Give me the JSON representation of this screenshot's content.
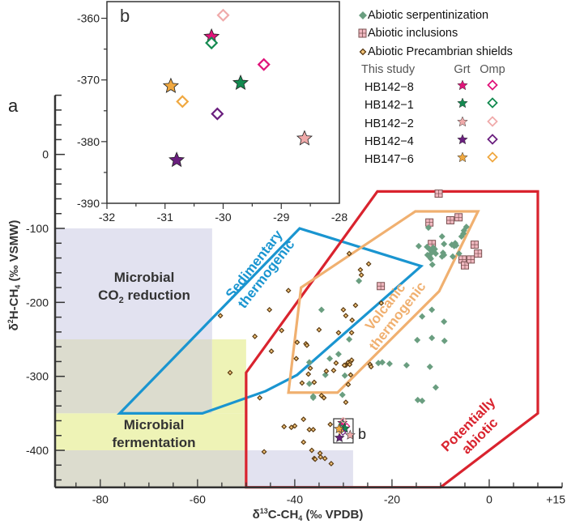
{
  "figure_labels": {
    "panel_a": "a",
    "panel_b": "b",
    "box_b": "b"
  },
  "colors": {
    "red_region": "#d9232e",
    "blue_region": "#1a95d0",
    "orange_region": "#f0b070",
    "lavender": "#e2e2f0",
    "yellow": "#eef3b6",
    "gray": "#dcdcce",
    "serpentinization": "#6a9e80",
    "precambrian_fill": "#f5c67a",
    "precambrian_stroke": "#5a3a12",
    "inclusions_fill": "#f0b8c0",
    "inclusions_stroke": "#7a5050"
  },
  "legend": {
    "serpentinization": "Abiotic serpentinization",
    "inclusions": "Abiotic inclusions",
    "precambrian": "Abiotic Precambrian shields",
    "this_study": "This study",
    "grt": "Grt",
    "omp": "Omp",
    "samples": [
      {
        "name": "HB142−8",
        "color": "#e0147a"
      },
      {
        "name": "HB142−1",
        "color": "#138a50"
      },
      {
        "name": "HB142−2",
        "color": "#f0aaaa"
      },
      {
        "name": "HB142−4",
        "color": "#6a1e7e"
      },
      {
        "name": "HB147−6",
        "color": "#f0a840"
      }
    ]
  },
  "chart_data": [
    {
      "type": "scatter",
      "xlabel": {
        "a": "δ",
        "b": "13",
        "c": "C-CH",
        "d": "4",
        "e": " (‰ VPDB)"
      },
      "ylabel": {
        "a": "δ",
        "b": "2",
        "c": "H-CH",
        "d": "4",
        "e": " (‰ VSMW)"
      },
      "xlim": [
        -89.3,
        15
      ],
      "ylim": [
        -450,
        80
      ],
      "xticks": [
        {
          "v": -80,
          "label": "-80"
        },
        {
          "v": -60,
          "label": "-60"
        },
        {
          "v": -40,
          "label": "-40"
        },
        {
          "v": -20,
          "label": "-20"
        },
        {
          "v": 0,
          "label": "0"
        },
        {
          "v": 15,
          "label": "+15"
        }
      ],
      "yticks": [
        {
          "v": 0,
          "label": "0"
        },
        {
          "v": -100,
          "label": "-100"
        },
        {
          "v": -200,
          "label": "-200"
        },
        {
          "v": -300,
          "label": "-300"
        },
        {
          "v": -400,
          "label": "-400"
        }
      ],
      "regions": {
        "co2_reduction": {
          "label1": "Microbial",
          "label2a": "CO",
          "label2b": "2",
          "label2c": " reduction"
        },
        "fermentation": {
          "label1": "Microbial",
          "label2": "fermentation"
        },
        "sedimentary": {
          "label1": "Sedimentary",
          "label2": "thermogenic",
          "polygon": [
            [
              -39,
              -100
            ],
            [
              -14,
              -151
            ],
            [
              -39.5,
              -298
            ],
            [
              -46,
              -320
            ],
            [
              -59,
              -350
            ],
            [
              -76,
              -350
            ]
          ]
        },
        "volcanic": {
          "label1": "Volcanic",
          "label2": "thermogenic",
          "polygon": [
            [
              -15.2,
              -77
            ],
            [
              -2.3,
              -77
            ],
            [
              -10.3,
              -185
            ],
            [
              -31.2,
              -322
            ],
            [
              -41.3,
              -322
            ],
            [
              -38.7,
              -180
            ]
          ]
        },
        "abiotic": {
          "label1": "Potentially",
          "label2": "abiotic",
          "polygon": [
            [
              -50,
              -450
            ],
            [
              -50,
              -295
            ],
            [
              -23,
              -50
            ],
            [
              10,
              -50
            ],
            [
              10,
              -350
            ],
            [
              -10,
              -450
            ]
          ]
        },
        "rects": [
          {
            "x": [
              -89.3,
              -57
            ],
            "y": [
              -100,
              -250
            ],
            "fill": "#e2e2f0"
          },
          {
            "x": [
              -89.3,
              -57
            ],
            "y": [
              -250,
              -350
            ],
            "fill": "#dcdcce"
          },
          {
            "x": [
              -57,
              -50
            ],
            "y": [
              -250,
              -350
            ],
            "fill": "#eef3b6"
          },
          {
            "x": [
              -89.3,
              -50
            ],
            "y": [
              -350,
              -400
            ],
            "fill": "#eef3b6"
          },
          {
            "x": [
              -89.3,
              -50
            ],
            "y": [
              -400,
              -450
            ],
            "fill": "#dcdcce"
          },
          {
            "x": [
              -50,
              -28
            ],
            "y": [
              -400,
              -450
            ],
            "fill": "#e2e2f0"
          }
        ]
      },
      "series": [
        {
          "name": "Abiotic serpentinization",
          "marker": "diamond",
          "points": [
            [
              -12.5,
              -99
            ],
            [
              -9.7,
              -111
            ],
            [
              -9.3,
              -121
            ],
            [
              -14.5,
              -124
            ],
            [
              -12.8,
              -125
            ],
            [
              -12.3,
              -128
            ],
            [
              -11.8,
              -131
            ],
            [
              -11.2,
              -128
            ],
            [
              -12,
              -134
            ],
            [
              -12.7,
              -136
            ],
            [
              -11.5,
              -126
            ],
            [
              -11,
              -134
            ],
            [
              -12,
              -141
            ],
            [
              -12.2,
              -139
            ],
            [
              -11.7,
              -149
            ],
            [
              -9.5,
              -133
            ],
            [
              -9.3,
              -136
            ],
            [
              -9.7,
              -138
            ],
            [
              -7.7,
              -122
            ],
            [
              -7,
              -120
            ],
            [
              -6.8,
              -123
            ],
            [
              -7.2,
              -124
            ],
            [
              -7.5,
              -138
            ],
            [
              -5.3,
              -107
            ],
            [
              -5.2,
              -103
            ],
            [
              -4.7,
              -98
            ],
            [
              -5.7,
              -111
            ],
            [
              -6.2,
              -134
            ],
            [
              -26.8,
              -171
            ],
            [
              -34.5,
              -210
            ],
            [
              -13.8,
              -219
            ],
            [
              -11.8,
              -210
            ],
            [
              -9.3,
              -226
            ],
            [
              -14.8,
              -251
            ],
            [
              -11.8,
              -248
            ],
            [
              -9.2,
              -252
            ],
            [
              -31,
              -270
            ],
            [
              -32.8,
              -276
            ],
            [
              -37,
              -281
            ],
            [
              -22.8,
              -282
            ],
            [
              -22,
              -281
            ],
            [
              -20.5,
              -283
            ],
            [
              -17,
              -285
            ],
            [
              -12.2,
              -287
            ],
            [
              -33.7,
              -298
            ],
            [
              -29.7,
              -299
            ],
            [
              -37,
              -310
            ],
            [
              -30.2,
              -325
            ],
            [
              -36.2,
              -327
            ],
            [
              -36.2,
              -329
            ],
            [
              -11,
              -315
            ],
            [
              -14.7,
              -332
            ],
            [
              -13.8,
              -333
            ],
            [
              -28.8,
              -250
            ]
          ]
        },
        {
          "name": "Abiotic inclusions",
          "marker": "square",
          "points": [
            [
              -10.4,
              -53
            ],
            [
              -12.3,
              -92
            ],
            [
              -8,
              -89
            ],
            [
              -6.3,
              -85
            ],
            [
              -11.8,
              -121
            ],
            [
              -3,
              -122
            ],
            [
              -2.3,
              -134
            ],
            [
              -5.5,
              -142
            ],
            [
              -5,
              -150
            ],
            [
              -3.8,
              -142
            ],
            [
              -22.3,
              -178
            ]
          ]
        },
        {
          "name": "Abiotic Precambrian shields",
          "marker": "small-diamond",
          "points": [
            [
              -55.3,
              -218
            ],
            [
              -41.3,
              -184
            ],
            [
              -45.2,
              -210
            ],
            [
              -42.7,
              -238
            ],
            [
              -48.2,
              -246
            ],
            [
              -44.8,
              -266
            ],
            [
              -39.5,
              -254
            ],
            [
              -37.7,
              -256
            ],
            [
              -39.7,
              -276
            ],
            [
              -37.2,
              -297
            ],
            [
              -38.5,
              -309
            ],
            [
              -36.8,
              -289
            ],
            [
              -47.2,
              -329
            ],
            [
              -42.2,
              -368
            ],
            [
              -40.7,
              -369
            ],
            [
              -40,
              -367
            ],
            [
              -38.2,
              -358
            ],
            [
              -37,
              -372
            ],
            [
              -36.2,
              -372
            ],
            [
              -38.2,
              -389
            ],
            [
              -36.5,
              -400
            ],
            [
              -46.3,
              -402
            ],
            [
              -36,
              -411
            ],
            [
              -53.3,
              -295
            ],
            [
              -28.8,
              -134
            ],
            [
              -24.8,
              -148
            ],
            [
              -26.5,
              -156
            ],
            [
              -26.3,
              -163
            ],
            [
              -30,
              -210
            ],
            [
              -27.5,
              -204
            ],
            [
              -29.5,
              -218
            ],
            [
              -28.2,
              -224
            ],
            [
              -35,
              -237
            ],
            [
              -31,
              -241
            ],
            [
              -28.3,
              -241
            ],
            [
              -37.5,
              -258
            ],
            [
              -29,
              -281
            ],
            [
              -28.5,
              -280
            ],
            [
              -28.7,
              -284
            ],
            [
              -29.5,
              -285
            ],
            [
              -24.5,
              -284
            ],
            [
              -24.3,
              -287
            ],
            [
              -31.5,
              -282
            ],
            [
              -33.5,
              -293
            ],
            [
              -32,
              -292
            ],
            [
              -36,
              -308
            ],
            [
              -28.5,
              -298
            ],
            [
              -29,
              -311
            ],
            [
              -34.5,
              -326
            ],
            [
              -34,
              -329
            ],
            [
              -29.5,
              -335
            ],
            [
              -32.7,
              -365
            ],
            [
              -34.8,
              -404
            ],
            [
              -34.7,
              -409
            ],
            [
              -33.8,
              -411
            ],
            [
              -32.5,
              -418
            ],
            [
              -22.2,
              -201
            ],
            [
              -35.8,
              -412
            ],
            [
              -28.3,
              -278
            ],
            [
              -29.8,
              -285
            ]
          ]
        }
      ]
    },
    {
      "type": "scatter",
      "xlim": [
        -32,
        -28
      ],
      "ylim": [
        -390,
        -357.3
      ],
      "xticks": [
        {
          "v": -32,
          "label": "-32"
        },
        {
          "v": -31,
          "label": "-31"
        },
        {
          "v": -30,
          "label": "-30"
        },
        {
          "v": -29,
          "label": "-29"
        },
        {
          "v": -28,
          "label": "-28"
        }
      ],
      "yticks": [
        {
          "v": -360,
          "label": "-360"
        },
        {
          "v": -370,
          "label": "-370"
        },
        {
          "v": -380,
          "label": "-380"
        },
        {
          "v": -390,
          "label": "-390"
        }
      ],
      "series": [
        {
          "name": "HB142−8",
          "color": "#e0147a",
          "grt": [
            -30.2,
            -363
          ],
          "omp": [
            -29.3,
            -367.5
          ]
        },
        {
          "name": "HB142−1",
          "color": "#138a50",
          "grt": [
            -29.7,
            -370.5
          ],
          "omp": [
            -30.2,
            -364
          ]
        },
        {
          "name": "HB142−2",
          "color": "#f0aaaa",
          "grt": [
            -28.6,
            -379.5
          ],
          "omp": [
            -30.0,
            -359.5
          ]
        },
        {
          "name": "HB142−4",
          "color": "#6a1e7e",
          "grt": [
            -30.8,
            -383
          ],
          "omp": [
            -30.1,
            -375.5
          ]
        },
        {
          "name": "HB147−6",
          "color": "#f0a840",
          "grt": [
            -30.9,
            -371
          ],
          "omp": [
            -30.7,
            -373.5
          ]
        }
      ]
    }
  ]
}
